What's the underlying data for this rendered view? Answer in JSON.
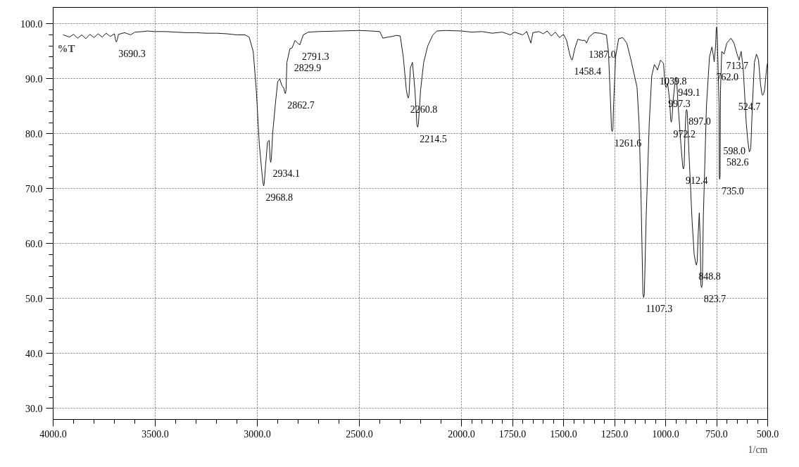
{
  "chart_data": {
    "type": "line",
    "xlabel": "1/cm",
    "ylabel": "%T",
    "color": "#1a1a1a",
    "grid": true,
    "xlim": [
      4000,
      500
    ],
    "ylim": [
      28,
      103
    ],
    "xticks": [
      {
        "value": 4000,
        "label": "4000.0"
      },
      {
        "value": 3500,
        "label": "3500.0"
      },
      {
        "value": 3000,
        "label": "3000.0"
      },
      {
        "value": 2500,
        "label": "2500.0"
      },
      {
        "value": 2000,
        "label": "2000.0"
      },
      {
        "value": 1750,
        "label": "1750.0"
      },
      {
        "value": 1500,
        "label": "1500.0"
      },
      {
        "value": 1250,
        "label": "1250.0"
      },
      {
        "value": 1000,
        "label": "1000.0"
      },
      {
        "value": 750,
        "label": "750.0"
      },
      {
        "value": 500,
        "label": "500.0"
      }
    ],
    "yticks": [
      {
        "value": 30,
        "label": "30.0"
      },
      {
        "value": 40,
        "label": "40.0"
      },
      {
        "value": 50,
        "label": "50.0"
      },
      {
        "value": 60,
        "label": "60.0"
      },
      {
        "value": 70,
        "label": "70.0"
      },
      {
        "value": 80,
        "label": "80.0"
      },
      {
        "value": 90,
        "label": "90.0"
      },
      {
        "value": 100,
        "label": "100.0"
      }
    ],
    "x": [
      3950,
      3920,
      3900,
      3880,
      3860,
      3840,
      3820,
      3800,
      3780,
      3760,
      3740,
      3720,
      3700,
      3694,
      3690.3,
      3686,
      3680,
      3650,
      3620,
      3600,
      3560,
      3540,
      3500,
      3450,
      3400,
      3350,
      3300,
      3250,
      3200,
      3150,
      3100,
      3060,
      3040,
      3020,
      3005,
      2990,
      2975,
      2971,
      2968.8,
      2966,
      2960,
      2950,
      2942,
      2937,
      2934.1,
      2931,
      2925,
      2910,
      2900,
      2890,
      2880,
      2870,
      2866,
      2862.7,
      2859,
      2855,
      2840,
      2829.9,
      2815,
      2800,
      2791.3,
      2775,
      2750,
      2700,
      2600,
      2500,
      2440,
      2400,
      2385,
      2360,
      2340,
      2320,
      2300,
      2285,
      2270,
      2264,
      2260.8,
      2257,
      2250,
      2240,
      2228,
      2218,
      2214.5,
      2211,
      2200,
      2185,
      2165,
      2140,
      2120,
      2080,
      2000,
      1950,
      1900,
      1850,
      1800,
      1760,
      1740,
      1700,
      1680,
      1660,
      1650,
      1620,
      1600,
      1580,
      1560,
      1540,
      1520,
      1500,
      1485,
      1470,
      1462,
      1458.4,
      1455,
      1445,
      1430,
      1410,
      1395,
      1387.0,
      1375,
      1350,
      1320,
      1290,
      1280,
      1270,
      1265,
      1261.6,
      1258,
      1255,
      1245,
      1230,
      1210,
      1190,
      1170,
      1155,
      1140,
      1130,
      1120,
      1111,
      1107.3,
      1104,
      1095,
      1080,
      1068,
      1055,
      1045,
      1039.8,
      1025,
      1010,
      1003,
      997.3,
      990,
      980,
      975,
      972.2,
      969,
      963,
      955,
      952,
      949.1,
      946,
      940,
      925,
      916,
      912.4,
      909,
      905,
      900,
      897.0,
      894,
      885,
      870,
      860,
      852,
      848.8,
      845,
      840,
      835,
      830,
      827,
      823.7,
      820,
      815,
      800,
      785,
      773,
      765,
      762.0,
      755,
      752,
      750,
      748,
      745,
      738,
      737,
      735.0,
      733,
      731,
      725,
      713.7,
      700,
      680,
      665,
      650,
      640,
      630,
      620,
      605,
      598,
      590,
      586,
      582.6,
      575,
      565,
      555,
      545,
      535,
      528,
      524.7,
      521,
      515,
      505,
      500
    ],
    "values": [
      98.0,
      97.6,
      98.1,
      97.4,
      98.0,
      97.3,
      98.1,
      97.5,
      98.2,
      97.6,
      98.3,
      97.7,
      98.2,
      97.0,
      96.7,
      97.1,
      98.1,
      98.4,
      98.0,
      98.5,
      98.6,
      98.7,
      98.6,
      98.6,
      98.5,
      98.4,
      98.4,
      98.3,
      98.3,
      98.2,
      98.0,
      98.0,
      97.6,
      95.0,
      88.0,
      78.0,
      72.0,
      70.8,
      70.5,
      71.0,
      74.0,
      78.5,
      78.8,
      75.3,
      74.8,
      75.5,
      80.0,
      86.0,
      89.5,
      90.0,
      88.8,
      88.3,
      87.6,
      87.3,
      88.0,
      93.0,
      95.5,
      95.6,
      97.0,
      96.4,
      96.2,
      98.0,
      98.5,
      98.6,
      98.7,
      98.8,
      98.7,
      98.6,
      97.4,
      97.6,
      97.7,
      97.9,
      97.8,
      94.0,
      88.0,
      86.8,
      86.5,
      87.0,
      92.0,
      93.0,
      88.0,
      81.6,
      81.2,
      81.7,
      88.0,
      93.0,
      96.0,
      98.0,
      98.7,
      98.8,
      98.7,
      98.5,
      98.6,
      98.3,
      98.5,
      98.0,
      98.5,
      98.0,
      98.6,
      96.5,
      98.4,
      98.6,
      98.2,
      98.7,
      97.8,
      98.5,
      97.5,
      98.1,
      97.0,
      94.5,
      93.6,
      93.4,
      93.7,
      95.5,
      97.2,
      97.0,
      97.0,
      96.5,
      97.6,
      98.4,
      98.3,
      98.0,
      95.0,
      86.0,
      80.8,
      80.4,
      80.9,
      85.0,
      94.0,
      97.3,
      97.5,
      96.5,
      93.5,
      91.0,
      88.5,
      82.0,
      68.0,
      50.8,
      50.2,
      50.9,
      65.0,
      82.0,
      90.5,
      92.6,
      92.0,
      91.6,
      93.4,
      92.8,
      89.0,
      88.4,
      89.2,
      86.0,
      82.5,
      82.1,
      82.6,
      86.0,
      89.0,
      90.0,
      90.3,
      89.9,
      86.0,
      78.0,
      74.0,
      73.6,
      74.2,
      80.0,
      84.1,
      84.4,
      84.0,
      76.0,
      64.0,
      58.0,
      56.4,
      56.1,
      56.8,
      62.0,
      65.6,
      60.0,
      52.5,
      52.0,
      52.6,
      65.0,
      85.0,
      94.0,
      95.8,
      94.0,
      93.1,
      96.0,
      99.0,
      99.4,
      99.0,
      95.0,
      85.0,
      72.2,
      71.7,
      72.3,
      88.0,
      95.0,
      94.5,
      96.5,
      97.4,
      96.5,
      94.5,
      93.4,
      95.0,
      92.0,
      82.0,
      79.0,
      76.7,
      76.9,
      77.5,
      85.0,
      93.0,
      94.5,
      93.5,
      89.0,
      87.2,
      87.0,
      87.2,
      88.0,
      92.0,
      93.0
    ],
    "annotations": [
      {
        "text": "3690.3",
        "x": 3690.3,
        "y": 96.7
      },
      {
        "text": "2791.3",
        "x": 2791.3,
        "y": 96.2
      },
      {
        "text": "2829.9",
        "x": 2829.9,
        "y": 95.6
      },
      {
        "text": "2862.7",
        "x": 2862.7,
        "y": 87.3
      },
      {
        "text": "2934.1",
        "x": 2934.1,
        "y": 74.8
      },
      {
        "text": "2968.8",
        "x": 2968.8,
        "y": 70.5
      },
      {
        "text": "2260.8",
        "x": 2260.8,
        "y": 86.5
      },
      {
        "text": "2214.5",
        "x": 2214.5,
        "y": 81.2
      },
      {
        "text": "1458.4",
        "x": 1458.4,
        "y": 93.4
      },
      {
        "text": "1387.0",
        "x": 1387.0,
        "y": 96.5
      },
      {
        "text": "1261.6",
        "x": 1261.6,
        "y": 80.4
      },
      {
        "text": "1107.3",
        "x": 1107.3,
        "y": 50.2
      },
      {
        "text": "1039.8",
        "x": 1039.8,
        "y": 91.6
      },
      {
        "text": "997.3",
        "x": 997.3,
        "y": 88.4
      },
      {
        "text": "949.1",
        "x": 949.1,
        "y": 90.3
      },
      {
        "text": "972.2",
        "x": 972.2,
        "y": 82.1
      },
      {
        "text": "897.0",
        "x": 897.0,
        "y": 84.4
      },
      {
        "text": "912.4",
        "x": 912.4,
        "y": 73.6
      },
      {
        "text": "848.8",
        "x": 848.8,
        "y": 56.1
      },
      {
        "text": "823.7",
        "x": 823.7,
        "y": 52.0
      },
      {
        "text": "762.0",
        "x": 762.0,
        "y": 93.1
      },
      {
        "text": "713.7",
        "x": 713.7,
        "y": 94.5
      },
      {
        "text": "735.0",
        "x": 735.0,
        "y": 71.7
      },
      {
        "text": "524.7",
        "x": 524.7,
        "y": 87.0
      },
      {
        "text": "582.6",
        "x": 582.6,
        "y": 77.5
      },
      {
        "text": "598.0",
        "x": 598.0,
        "y": 79.0
      }
    ]
  }
}
